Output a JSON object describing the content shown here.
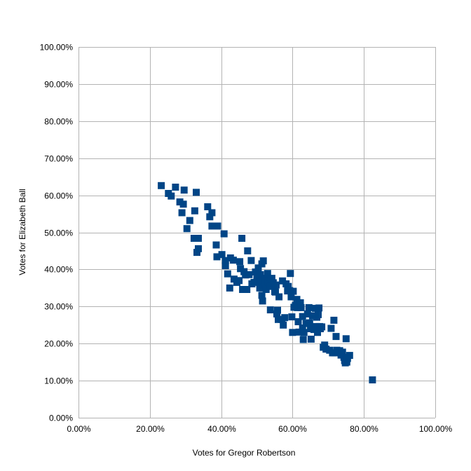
{
  "chart_data": {
    "type": "scatter",
    "xlabel": "Votes for Gregor Robertson",
    "ylabel": "Votes for Elizabeth Ball",
    "xlim": [
      0,
      100
    ],
    "ylim": [
      0,
      100
    ],
    "x_ticks": [
      "0.00%",
      "20.00%",
      "40.00%",
      "60.00%",
      "80.00%",
      "100.00%"
    ],
    "y_ticks": [
      "0.00%",
      "10.00%",
      "20.00%",
      "30.00%",
      "40.00%",
      "50.00%",
      "60.00%",
      "70.00%",
      "80.00%",
      "90.00%",
      "100.00%"
    ],
    "grid": true,
    "legend": "none",
    "marker_color": "#004586",
    "gridline_color": "#b3b3b3",
    "series": [
      {
        "points": [
          [
            23.2,
            62.6
          ],
          [
            25.2,
            60.5
          ],
          [
            26.0,
            59.8
          ],
          [
            27.2,
            62.2
          ],
          [
            28.4,
            58.2
          ],
          [
            29.0,
            55.3
          ],
          [
            29.6,
            61.4
          ],
          [
            29.4,
            57.6
          ],
          [
            30.4,
            51.0
          ],
          [
            31.2,
            53.2
          ],
          [
            32.4,
            48.4
          ],
          [
            32.6,
            55.8
          ],
          [
            33.0,
            60.8
          ],
          [
            33.2,
            44.6
          ],
          [
            33.6,
            45.6
          ],
          [
            33.6,
            48.4
          ],
          [
            36.2,
            56.9
          ],
          [
            36.8,
            54.2
          ],
          [
            37.4,
            55.3
          ],
          [
            37.4,
            51.7
          ],
          [
            38.6,
            46.6
          ],
          [
            38.8,
            43.4
          ],
          [
            39.0,
            51.7
          ],
          [
            40.2,
            44.0
          ],
          [
            40.8,
            49.6
          ],
          [
            41.2,
            42.4
          ],
          [
            41.2,
            41.0
          ],
          [
            41.8,
            38.8
          ],
          [
            42.4,
            35.0
          ],
          [
            42.6,
            43.1
          ],
          [
            43.4,
            42.5
          ],
          [
            43.6,
            37.4
          ],
          [
            44.4,
            36.5
          ],
          [
            45.0,
            37.0
          ],
          [
            45.2,
            42.1
          ],
          [
            45.4,
            40.2
          ],
          [
            45.8,
            48.4
          ],
          [
            46.0,
            34.6
          ],
          [
            46.4,
            39.4
          ],
          [
            46.8,
            38.5
          ],
          [
            47.2,
            34.6
          ],
          [
            47.4,
            45.0
          ],
          [
            47.8,
            38.6
          ],
          [
            48.4,
            42.4
          ],
          [
            48.6,
            36.1
          ],
          [
            49.2,
            36.5
          ],
          [
            49.6,
            39.3
          ],
          [
            50.0,
            37.4
          ],
          [
            50.2,
            38.1
          ],
          [
            50.4,
            40.4
          ],
          [
            50.8,
            35.0
          ],
          [
            50.8,
            36.8
          ],
          [
            51.0,
            38.6
          ],
          [
            51.2,
            36.9
          ],
          [
            51.4,
            41.5
          ],
          [
            51.4,
            33.0
          ],
          [
            51.6,
            31.5
          ],
          [
            51.8,
            42.3
          ],
          [
            52.2,
            35.9
          ],
          [
            52.4,
            37.6
          ],
          [
            52.6,
            34.6
          ],
          [
            53.0,
            38.9
          ],
          [
            53.2,
            36.5
          ],
          [
            53.6,
            36.0
          ],
          [
            53.8,
            35.4
          ],
          [
            53.8,
            29.1
          ],
          [
            54.2,
            37.6
          ],
          [
            54.6,
            36.4
          ],
          [
            55.0,
            34.0
          ],
          [
            55.2,
            33.9
          ],
          [
            55.4,
            35.8
          ],
          [
            55.6,
            28.0
          ],
          [
            55.8,
            29.0
          ],
          [
            56.0,
            26.5
          ],
          [
            56.2,
            32.6
          ],
          [
            57.0,
            26.5
          ],
          [
            57.2,
            36.9
          ],
          [
            57.4,
            25.0
          ],
          [
            57.8,
            27.0
          ],
          [
            58.2,
            36.1
          ],
          [
            58.6,
            34.2
          ],
          [
            58.8,
            35.4
          ],
          [
            59.2,
            34.3
          ],
          [
            59.4,
            38.9
          ],
          [
            59.6,
            32.6
          ],
          [
            59.8,
            27.2
          ],
          [
            60.0,
            23.0
          ],
          [
            60.2,
            34.1
          ],
          [
            60.4,
            29.8
          ],
          [
            60.8,
            30.3
          ],
          [
            61.2,
            31.9
          ],
          [
            61.4,
            29.7
          ],
          [
            61.6,
            25.9
          ],
          [
            61.8,
            23.1
          ],
          [
            62.2,
            31.0
          ],
          [
            62.4,
            29.7
          ],
          [
            62.8,
            24.2
          ],
          [
            62.8,
            27.3
          ],
          [
            63.0,
            21.1
          ],
          [
            63.2,
            23.0
          ],
          [
            63.8,
            25.4
          ],
          [
            64.2,
            28.0
          ],
          [
            64.6,
            29.7
          ],
          [
            64.8,
            25.6
          ],
          [
            65.0,
            24.0
          ],
          [
            65.2,
            21.2
          ],
          [
            65.6,
            27.5
          ],
          [
            66.0,
            23.8
          ],
          [
            66.4,
            29.5
          ],
          [
            66.6,
            24.6
          ],
          [
            66.8,
            27.1
          ],
          [
            67.0,
            23.0
          ],
          [
            67.2,
            27.8
          ],
          [
            67.4,
            29.6
          ],
          [
            67.6,
            24.6
          ],
          [
            67.8,
            24.0
          ],
          [
            68.2,
            24.5
          ],
          [
            68.6,
            19.0
          ],
          [
            69.0,
            19.6
          ],
          [
            69.4,
            18.5
          ],
          [
            70.4,
            18.2
          ],
          [
            70.8,
            24.1
          ],
          [
            71.2,
            17.5
          ],
          [
            71.6,
            26.3
          ],
          [
            71.8,
            17.5
          ],
          [
            72.2,
            21.9
          ],
          [
            72.4,
            18.2
          ],
          [
            72.8,
            17.9
          ],
          [
            73.2,
            18.1
          ],
          [
            73.6,
            16.9
          ],
          [
            74.0,
            17.7
          ],
          [
            74.4,
            16.3
          ],
          [
            74.6,
            15.4
          ],
          [
            74.8,
            14.8
          ],
          [
            75.0,
            21.3
          ],
          [
            75.2,
            15.0
          ],
          [
            75.4,
            16.0
          ],
          [
            76.0,
            16.8
          ],
          [
            82.4,
            10.2
          ]
        ]
      }
    ]
  }
}
